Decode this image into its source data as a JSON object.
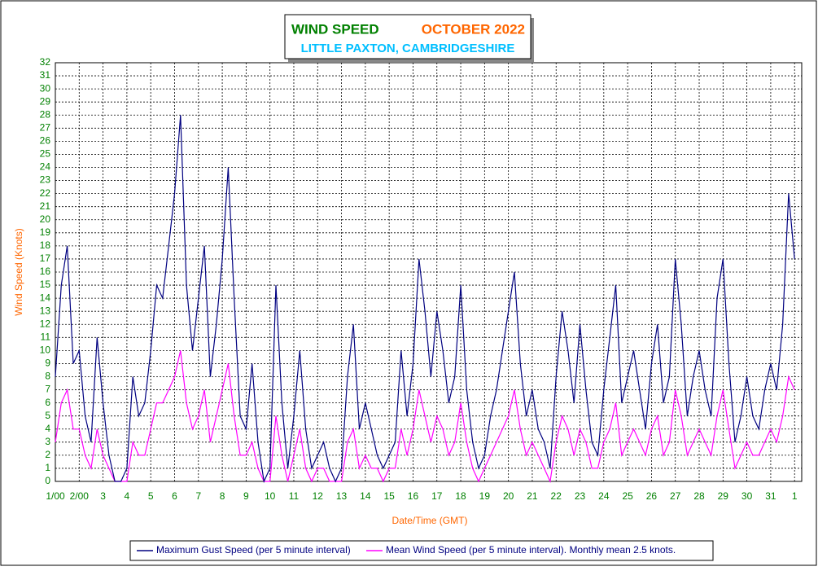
{
  "chart_data": {
    "type": "line",
    "title": "WIND SPEED",
    "period": "OCTOBER 2022",
    "subtitle": "LITTLE PAXTON, CAMBRIDGESHIRE",
    "xlabel": "Date/Time (GMT)",
    "ylabel": "Wind Speed (Knots)",
    "x": [
      0,
      0.25,
      0.5,
      0.75,
      1,
      1.25,
      1.5,
      1.75,
      2,
      2.25,
      2.5,
      2.75,
      3,
      3.25,
      3.5,
      3.75,
      4,
      4.25,
      4.5,
      4.75,
      5,
      5.25,
      5.5,
      5.75,
      6,
      6.25,
      6.5,
      6.75,
      7,
      7.25,
      7.5,
      7.75,
      8,
      8.25,
      8.5,
      8.75,
      9,
      9.25,
      9.5,
      9.75,
      10,
      10.25,
      10.5,
      10.75,
      11,
      11.25,
      11.5,
      11.75,
      12,
      12.25,
      12.5,
      12.75,
      13,
      13.25,
      13.5,
      13.75,
      14,
      14.25,
      14.5,
      14.75,
      15,
      15.25,
      15.5,
      15.75,
      16,
      16.25,
      16.5,
      16.75,
      17,
      17.25,
      17.5,
      17.75,
      18,
      18.25,
      18.5,
      18.75,
      19,
      19.25,
      19.5,
      19.75,
      20,
      20.25,
      20.5,
      20.75,
      21,
      21.25,
      21.5,
      21.75,
      22,
      22.25,
      22.5,
      22.75,
      23,
      23.25,
      23.5,
      23.75,
      24,
      24.25,
      24.5,
      24.75,
      25,
      25.25,
      25.5,
      25.75,
      26,
      26.25,
      26.5,
      26.75,
      27,
      27.25,
      27.5,
      27.75,
      28,
      28.25,
      28.5,
      28.75,
      29,
      29.25,
      29.5,
      29.75,
      30,
      30.25,
      30.5,
      30.75,
      31
    ],
    "series": [
      {
        "name": "Maximum Gust Speed (per 5 minute interval)",
        "color": "#000080",
        "values": [
          8,
          15,
          18,
          9,
          10,
          5,
          3,
          11,
          6,
          2,
          0,
          0,
          1,
          8,
          5,
          6,
          10,
          15,
          14,
          18,
          22,
          28,
          15,
          10,
          14,
          18,
          8,
          12,
          17,
          24,
          14,
          5,
          4,
          9,
          3,
          0,
          1,
          15,
          6,
          1,
          5,
          10,
          4,
          1,
          2,
          3,
          1,
          0,
          1,
          8,
          12,
          4,
          6,
          4,
          2,
          1,
          2,
          3,
          10,
          5,
          9,
          17,
          13,
          8,
          13,
          10,
          6,
          8,
          15,
          7,
          3,
          1,
          2,
          5,
          7,
          10,
          13,
          16,
          9,
          5,
          7,
          4,
          3,
          1,
          8,
          13,
          10,
          6,
          12,
          7,
          3,
          2,
          7,
          11,
          15,
          6,
          8,
          10,
          7,
          4,
          9,
          12,
          6,
          8,
          17,
          12,
          5,
          8,
          10,
          7,
          5,
          14,
          17,
          9,
          3,
          5,
          8,
          5,
          4,
          7,
          9,
          7,
          12,
          22,
          17
        ]
      },
      {
        "name": "Mean Wind Speed (per 5 minute interval). Monthly mean 2.5 knots.",
        "color": "#ff00ff",
        "values": [
          3,
          6,
          7,
          4,
          4,
          2,
          1,
          4,
          2,
          1,
          0,
          0,
          0,
          3,
          2,
          2,
          4,
          6,
          6,
          7,
          8,
          10,
          6,
          4,
          5,
          7,
          3,
          5,
          7,
          9,
          5,
          2,
          2,
          3,
          1,
          0,
          0,
          5,
          2,
          0,
          2,
          4,
          1,
          0,
          1,
          1,
          0,
          0,
          0,
          3,
          4,
          1,
          2,
          1,
          1,
          0,
          1,
          1,
          4,
          2,
          4,
          7,
          5,
          3,
          5,
          4,
          2,
          3,
          6,
          3,
          1,
          0,
          1,
          2,
          3,
          4,
          5,
          7,
          4,
          2,
          3,
          2,
          1,
          0,
          3,
          5,
          4,
          2,
          4,
          3,
          1,
          1,
          3,
          4,
          6,
          2,
          3,
          4,
          3,
          2,
          4,
          5,
          2,
          3,
          7,
          5,
          2,
          3,
          4,
          3,
          2,
          5,
          7,
          4,
          1,
          2,
          3,
          2,
          2,
          3,
          4,
          3,
          5,
          8,
          7
        ]
      }
    ],
    "xlim": [
      0,
      31.3
    ],
    "xticks": [
      {
        "value": 0,
        "label": "1/00"
      },
      {
        "value": 1,
        "label": "2/00"
      },
      {
        "value": 2,
        "label": "3"
      },
      {
        "value": 3,
        "label": "4"
      },
      {
        "value": 4,
        "label": "5"
      },
      {
        "value": 5,
        "label": "6"
      },
      {
        "value": 6,
        "label": "7"
      },
      {
        "value": 7,
        "label": "8"
      },
      {
        "value": 8,
        "label": "9"
      },
      {
        "value": 9,
        "label": "10"
      },
      {
        "value": 10,
        "label": "11"
      },
      {
        "value": 11,
        "label": "12"
      },
      {
        "value": 12,
        "label": "13"
      },
      {
        "value": 13,
        "label": "14"
      },
      {
        "value": 14,
        "label": "15"
      },
      {
        "value": 15,
        "label": "16"
      },
      {
        "value": 16,
        "label": "17"
      },
      {
        "value": 17,
        "label": "18"
      },
      {
        "value": 18,
        "label": "19"
      },
      {
        "value": 19,
        "label": "20"
      },
      {
        "value": 20,
        "label": "21"
      },
      {
        "value": 21,
        "label": "22"
      },
      {
        "value": 22,
        "label": "23"
      },
      {
        "value": 23,
        "label": "24"
      },
      {
        "value": 24,
        "label": "25"
      },
      {
        "value": 25,
        "label": "26"
      },
      {
        "value": 26,
        "label": "27"
      },
      {
        "value": 27,
        "label": "28"
      },
      {
        "value": 28,
        "label": "29"
      },
      {
        "value": 29,
        "label": "30"
      },
      {
        "value": 30,
        "label": "31"
      },
      {
        "value": 31,
        "label": "1"
      }
    ],
    "ylim": [
      0,
      32
    ],
    "yticks": [
      0,
      1,
      2,
      3,
      4,
      5,
      6,
      7,
      8,
      9,
      10,
      11,
      12,
      13,
      14,
      15,
      16,
      17,
      18,
      19,
      20,
      21,
      22,
      23,
      24,
      25,
      26,
      27,
      28,
      29,
      30,
      31,
      32
    ],
    "grid": true,
    "legend": "bottom"
  }
}
